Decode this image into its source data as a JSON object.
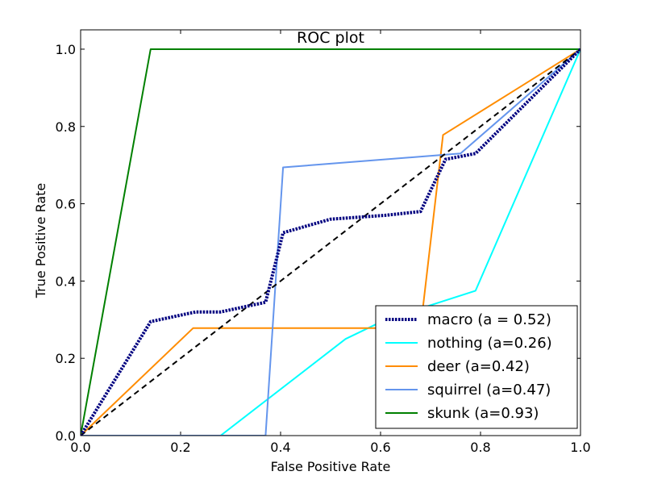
{
  "chart_data": {
    "type": "line",
    "title": "ROC plot",
    "xlabel": "False Positive Rate",
    "ylabel": "True Positive Rate",
    "xlim": [
      0.0,
      1.0
    ],
    "ylim": [
      0.0,
      1.05
    ],
    "xticks": [
      0.0,
      0.2,
      0.4,
      0.6,
      0.8,
      1.0
    ],
    "yticks": [
      0.0,
      0.2,
      0.4,
      0.6,
      0.8,
      1.0
    ],
    "xtick_labels": [
      "0.0",
      "0.2",
      "0.4",
      "0.6",
      "0.8",
      "1.0"
    ],
    "ytick_labels": [
      "0.0",
      "0.2",
      "0.4",
      "0.6",
      "0.8",
      "1.0"
    ],
    "legend_position": "lower-right",
    "series": [
      {
        "name": "macro (a = 0.52)",
        "color": "#000080",
        "style": "dotted",
        "x": [
          0.0,
          0.14,
          0.23,
          0.28,
          0.37,
          0.405,
          0.5,
          0.61,
          0.68,
          0.73,
          0.79,
          1.0
        ],
        "y": [
          0.0,
          0.295,
          0.32,
          0.32,
          0.345,
          0.525,
          0.56,
          0.57,
          0.58,
          0.715,
          0.73,
          1.0
        ]
      },
      {
        "name": "nothing (a=0.26)",
        "color": "#00ffff",
        "style": "solid",
        "x": [
          0.0,
          0.28,
          0.53,
          0.61,
          0.79,
          1.0
        ],
        "y": [
          0.0,
          0.0,
          0.25,
          0.3,
          0.375,
          1.0
        ]
      },
      {
        "name": "deer (a=0.42)",
        "color": "#ff8c00",
        "style": "solid",
        "x": [
          0.0,
          0.225,
          0.68,
          0.725,
          1.0
        ],
        "y": [
          0.0,
          0.278,
          0.278,
          0.778,
          1.0
        ]
      },
      {
        "name": "squirrel (a=0.47)",
        "color": "#6495ed",
        "style": "solid",
        "x": [
          0.0,
          0.37,
          0.405,
          0.76,
          1.0
        ],
        "y": [
          0.0,
          0.0,
          0.694,
          0.73,
          1.0
        ]
      },
      {
        "name": "skunk (a=0.93)",
        "color": "#008000",
        "style": "solid",
        "x": [
          0.0,
          0.14,
          1.0
        ],
        "y": [
          0.0,
          1.0,
          1.0
        ]
      }
    ],
    "reference_line": {
      "name": "chance",
      "color": "#000000",
      "style": "dashed",
      "x": [
        0.0,
        1.0
      ],
      "y": [
        0.0,
        1.0
      ]
    }
  }
}
